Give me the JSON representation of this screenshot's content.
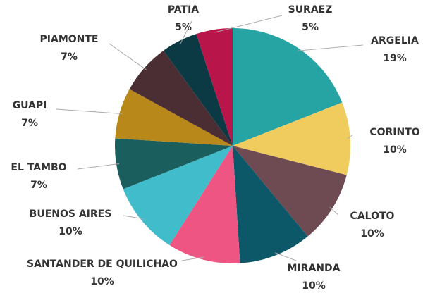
{
  "chart_data": {
    "type": "pie",
    "categories": [
      "ARGELIA",
      "CORINTO",
      "CALOTO",
      "MIRANDA",
      "SANTANDER DE QUILICHAO",
      "BUENOS AIRES",
      "EL TAMBO",
      "GUAPI",
      "PIAMONTE",
      "PATIA",
      "SURAEZ"
    ],
    "values": [
      19,
      10,
      10,
      10,
      10,
      10,
      7,
      7,
      7,
      5,
      5
    ],
    "value_labels": [
      "19%",
      "10%",
      "10%",
      "10%",
      "10%",
      "10%",
      "7%",
      "7%",
      "7%",
      "5%",
      "5%"
    ],
    "colors": [
      "#26a3a3",
      "#f0cb5e",
      "#6e4a52",
      "#0d5868",
      "#ef5583",
      "#41bccb",
      "#1b5e5e",
      "#b8891a",
      "#4a2e33",
      "#0b3a44",
      "#b8154a"
    ]
  }
}
